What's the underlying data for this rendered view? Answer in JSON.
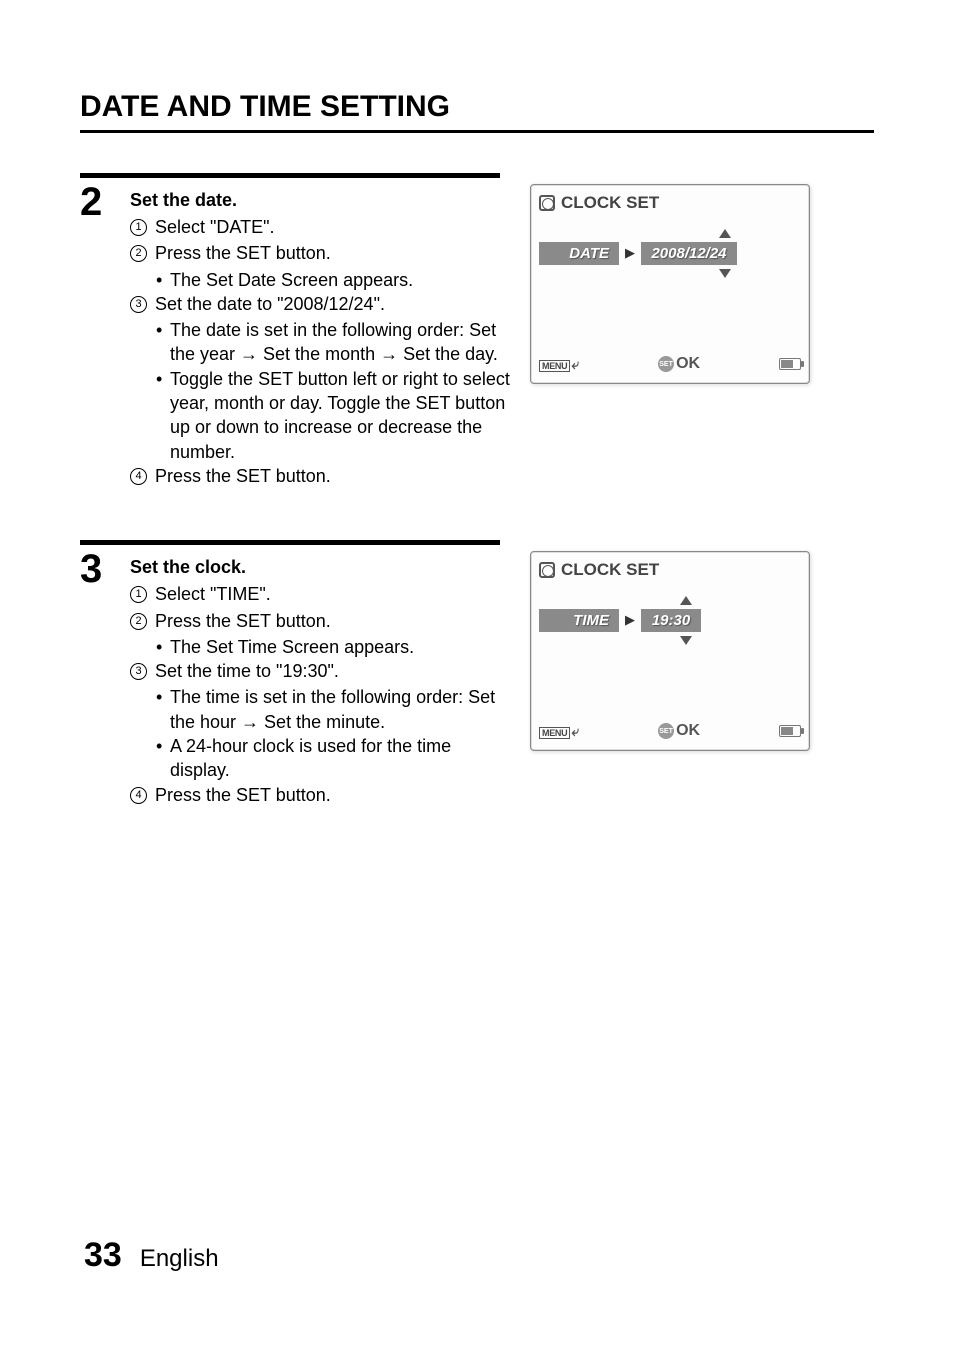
{
  "page": {
    "title": "DATE AND TIME SETTING",
    "number": "33",
    "language": "English"
  },
  "steps": [
    {
      "num": "2",
      "heading": "Set the date.",
      "items": [
        {
          "n": "1",
          "text": "Select \"DATE\"."
        },
        {
          "n": "2",
          "text": "Press the SET button.",
          "bullets": [
            "The Set Date Screen appears."
          ]
        },
        {
          "n": "3",
          "text": "Set the date to \"2008/12/24\".",
          "bullets": [
            "The date is set in the following order: Set the year → Set the month → Set the day.",
            "Toggle the SET button left or right to select year, month or day. Toggle the SET button up or down to increase or decrease the number."
          ]
        },
        {
          "n": "4",
          "text": "Press the SET button."
        }
      ],
      "screen": {
        "title": "CLOCK SET",
        "row_label": "DATE",
        "row_value": "2008/12/24",
        "narrow": false,
        "menu": "MENU",
        "set": "SET",
        "ok": "OK"
      }
    },
    {
      "num": "3",
      "heading": "Set the clock.",
      "items": [
        {
          "n": "1",
          "text": "Select \"TIME\"."
        },
        {
          "n": "2",
          "text": "Press the SET button.",
          "bullets": [
            "The Set Time Screen appears."
          ]
        },
        {
          "n": "3",
          "text": "Set the time to \"19:30\".",
          "bullets": [
            "The time is set in the following order: Set the hour → Set the minute.",
            "A 24-hour clock is used for the time display."
          ]
        },
        {
          "n": "4",
          "text": "Press the SET button."
        }
      ],
      "screen": {
        "title": "CLOCK SET",
        "row_label": "TIME",
        "row_value": "19:30",
        "narrow": true,
        "menu": "MENU",
        "set": "SET",
        "ok": "OK"
      }
    }
  ]
}
